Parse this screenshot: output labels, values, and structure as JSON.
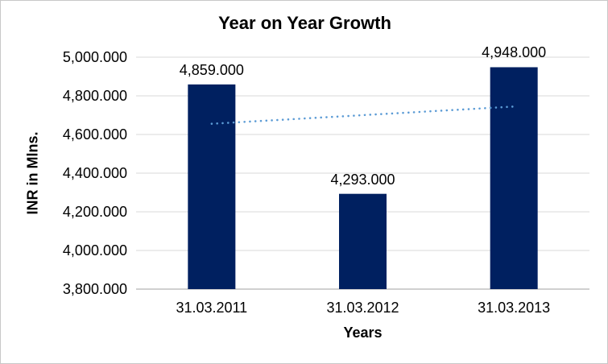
{
  "chart_data": {
    "type": "bar",
    "title": "Year on Year Growth",
    "xlabel": "Years",
    "ylabel": "INR in Mlns.",
    "categories": [
      "31.03.2011",
      "31.03.2012",
      "31.03.2013"
    ],
    "values": [
      4859,
      4293,
      4948
    ],
    "data_labels": [
      "4,859.000",
      "4,293.000",
      "4,948.000"
    ],
    "yticks": [
      3800,
      4000,
      4200,
      4400,
      4600,
      4800,
      5000
    ],
    "ytick_labels": [
      "3,800.000",
      "4,000.000",
      "4,200.000",
      "4,400.000",
      "4,600.000",
      "4,800.000",
      "5,000.000"
    ],
    "ylim": [
      3800,
      5000
    ],
    "grid": true,
    "legend": "none",
    "trendline": {
      "type": "linear",
      "style": "dotted"
    },
    "colors": {
      "bar": "#002060",
      "trendline": "#5B9BD5",
      "gridline": "#D9D9D9",
      "axis_line": "#D0D0D0",
      "text": "#000000",
      "background": "#FFFFFF",
      "border": "#C8C8C8"
    }
  }
}
